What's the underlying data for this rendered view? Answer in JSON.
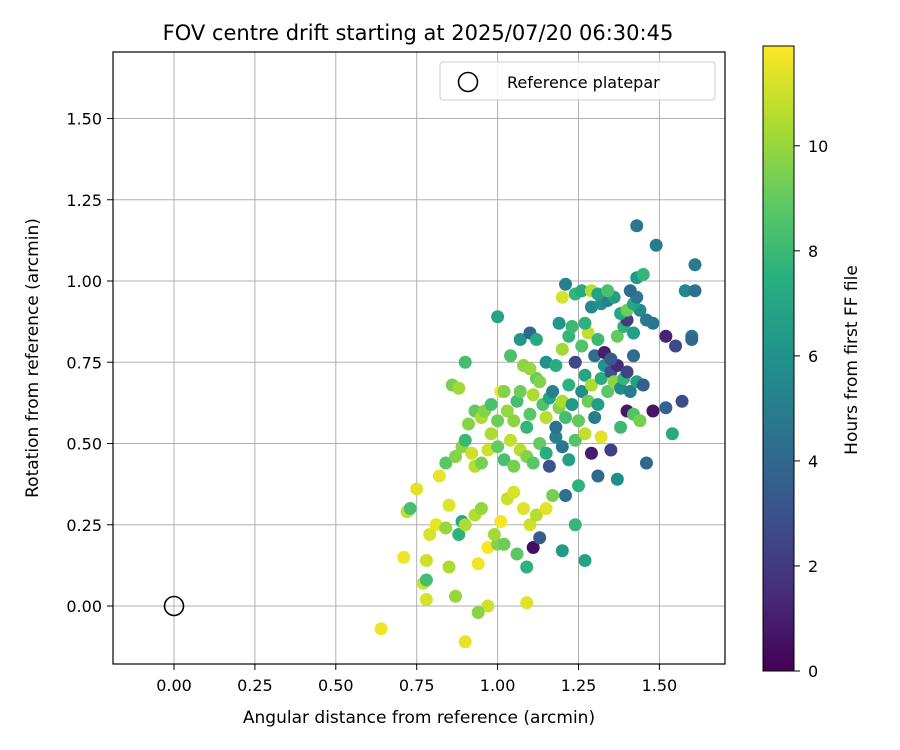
{
  "chart_data": {
    "type": "scatter",
    "title": "FOV centre drift starting at 2025/07/20 06:30:45",
    "xlabel": "Angular distance from reference (arcmin)",
    "ylabel": "Rotation from reference (arcmin)",
    "xlim": [
      -0.19,
      1.7
    ],
    "ylim": [
      -0.18,
      1.7
    ],
    "x_ticks": [
      "0.00",
      "0.25",
      "0.50",
      "0.75",
      "1.00",
      "1.25",
      "1.50"
    ],
    "y_ticks": [
      "0.00",
      "0.25",
      "0.50",
      "0.75",
      "1.00",
      "1.25",
      "1.50"
    ],
    "grid": true,
    "legend": {
      "position": "top-right",
      "entries": [
        {
          "label": "Reference platepar",
          "marker": "open-circle"
        }
      ]
    },
    "reference_point": {
      "x": 0.0,
      "y": 0.0
    },
    "colorbar": {
      "label": "Hours from first FF file",
      "range": [
        0,
        11.9
      ],
      "ticks": [
        "0",
        "2",
        "4",
        "6",
        "8",
        "10"
      ],
      "colormap": "viridis"
    },
    "points": [
      [
        0.64,
        -0.07,
        11.6
      ],
      [
        0.9,
        -0.11,
        11.5
      ],
      [
        0.97,
        0.0,
        11.0
      ],
      [
        1.09,
        0.01,
        11.3
      ],
      [
        0.94,
        -0.02,
        9.8
      ],
      [
        0.87,
        0.03,
        10.0
      ],
      [
        0.78,
        0.02,
        11.2
      ],
      [
        0.77,
        0.07,
        11.0
      ],
      [
        0.78,
        0.08,
        8.2
      ],
      [
        0.71,
        0.15,
        11.6
      ],
      [
        0.78,
        0.14,
        11.0
      ],
      [
        0.85,
        0.12,
        10.4
      ],
      [
        0.94,
        0.13,
        11.6
      ],
      [
        0.97,
        0.18,
        11.8
      ],
      [
        1.0,
        0.19,
        9.6
      ],
      [
        1.02,
        0.19,
        9.2
      ],
      [
        1.06,
        0.16,
        8.8
      ],
      [
        1.09,
        0.12,
        7.6
      ],
      [
        1.11,
        0.18,
        0.5
      ],
      [
        1.13,
        0.21,
        3.5
      ],
      [
        1.2,
        0.17,
        6.4
      ],
      [
        1.24,
        0.25,
        7.8
      ],
      [
        1.27,
        0.14,
        6.8
      ],
      [
        0.72,
        0.29,
        10.8
      ],
      [
        0.73,
        0.3,
        8.4
      ],
      [
        0.75,
        0.36,
        11.4
      ],
      [
        0.79,
        0.22,
        11.2
      ],
      [
        0.81,
        0.25,
        11.5
      ],
      [
        0.84,
        0.24,
        10.0
      ],
      [
        0.85,
        0.31,
        11.3
      ],
      [
        0.88,
        0.22,
        7.6
      ],
      [
        0.89,
        0.26,
        7.2
      ],
      [
        0.9,
        0.25,
        10.4
      ],
      [
        0.93,
        0.28,
        10.5
      ],
      [
        0.95,
        0.3,
        10.0
      ],
      [
        0.99,
        0.22,
        10.2
      ],
      [
        1.01,
        0.26,
        11.7
      ],
      [
        1.03,
        0.33,
        10.9
      ],
      [
        1.05,
        0.35,
        11.2
      ],
      [
        1.08,
        0.3,
        11.4
      ],
      [
        1.1,
        0.25,
        11.0
      ],
      [
        1.12,
        0.28,
        10.6
      ],
      [
        1.15,
        0.3,
        11.4
      ],
      [
        1.17,
        0.34,
        9.4
      ],
      [
        1.21,
        0.34,
        4.4
      ],
      [
        1.25,
        0.37,
        7.6
      ],
      [
        1.31,
        0.4,
        4.0
      ],
      [
        1.37,
        0.39,
        5.8
      ],
      [
        0.82,
        0.4,
        11.5
      ],
      [
        0.84,
        0.44,
        8.8
      ],
      [
        0.87,
        0.46,
        9.6
      ],
      [
        0.89,
        0.49,
        9.8
      ],
      [
        0.9,
        0.51,
        8.0
      ],
      [
        0.92,
        0.47,
        11.0
      ],
      [
        0.93,
        0.43,
        10.6
      ],
      [
        0.95,
        0.44,
        9.4
      ],
      [
        0.97,
        0.48,
        11.0
      ],
      [
        0.98,
        0.53,
        10.4
      ],
      [
        1.0,
        0.49,
        9.0
      ],
      [
        1.02,
        0.45,
        8.4
      ],
      [
        1.04,
        0.51,
        10.8
      ],
      [
        1.05,
        0.43,
        9.4
      ],
      [
        1.07,
        0.48,
        10.6
      ],
      [
        1.09,
        0.46,
        9.6
      ],
      [
        1.11,
        0.44,
        8.8
      ],
      [
        1.13,
        0.5,
        9.0
      ],
      [
        1.15,
        0.47,
        7.4
      ],
      [
        1.16,
        0.43,
        3.0
      ],
      [
        1.18,
        0.52,
        5.2
      ],
      [
        1.2,
        0.49,
        4.6
      ],
      [
        1.22,
        0.45,
        6.6
      ],
      [
        1.24,
        0.51,
        8.6
      ],
      [
        1.27,
        0.53,
        10.8
      ],
      [
        1.29,
        0.47,
        0.9
      ],
      [
        1.32,
        0.52,
        11.4
      ],
      [
        1.35,
        0.48,
        2.2
      ],
      [
        1.38,
        0.55,
        8.0
      ],
      [
        1.4,
        0.6,
        0.8
      ],
      [
        1.42,
        0.59,
        8.6
      ],
      [
        1.44,
        0.57,
        9.4
      ],
      [
        1.46,
        0.44,
        4.0
      ],
      [
        1.48,
        0.6,
        0.7
      ],
      [
        1.52,
        0.61,
        3.8
      ],
      [
        1.54,
        0.53,
        7.2
      ],
      [
        1.57,
        0.63,
        2.8
      ],
      [
        0.91,
        0.56,
        9.6
      ],
      [
        0.93,
        0.6,
        9.0
      ],
      [
        0.95,
        0.58,
        10.4
      ],
      [
        0.96,
        0.6,
        9.6
      ],
      [
        0.98,
        0.62,
        8.4
      ],
      [
        1.0,
        0.57,
        9.2
      ],
      [
        1.01,
        0.66,
        11.6
      ],
      [
        1.03,
        0.6,
        10.0
      ],
      [
        1.05,
        0.57,
        9.8
      ],
      [
        1.06,
        0.63,
        8.2
      ],
      [
        1.07,
        0.66,
        9.2
      ],
      [
        1.09,
        0.55,
        7.8
      ],
      [
        1.1,
        0.59,
        8.8
      ],
      [
        1.11,
        0.65,
        10.4
      ],
      [
        1.12,
        0.7,
        9.0
      ],
      [
        1.14,
        0.62,
        8.6
      ],
      [
        1.15,
        0.58,
        10.6
      ],
      [
        1.16,
        0.64,
        7.0
      ],
      [
        1.17,
        0.66,
        5.2
      ],
      [
        1.18,
        0.55,
        4.4
      ],
      [
        1.19,
        0.61,
        9.6
      ],
      [
        1.2,
        0.63,
        10.4
      ],
      [
        1.21,
        0.58,
        8.2
      ],
      [
        1.22,
        0.68,
        7.6
      ],
      [
        1.23,
        0.62,
        6.4
      ],
      [
        1.25,
        0.57,
        9.0
      ],
      [
        1.26,
        0.66,
        5.8
      ],
      [
        1.27,
        0.71,
        7.0
      ],
      [
        1.28,
        0.63,
        9.2
      ],
      [
        1.29,
        0.68,
        10.4
      ],
      [
        1.3,
        0.58,
        5.0
      ],
      [
        1.31,
        0.62,
        6.6
      ],
      [
        1.32,
        0.7,
        7.4
      ],
      [
        1.33,
        0.74,
        6.0
      ],
      [
        1.34,
        0.66,
        8.8
      ],
      [
        1.35,
        0.72,
        3.0
      ],
      [
        1.36,
        0.69,
        9.8
      ],
      [
        1.37,
        0.74,
        1.4
      ],
      [
        1.38,
        0.67,
        5.6
      ],
      [
        1.39,
        0.7,
        7.8
      ],
      [
        1.4,
        0.72,
        2.4
      ],
      [
        1.41,
        0.66,
        5.0
      ],
      [
        1.42,
        0.77,
        4.2
      ],
      [
        1.43,
        0.69,
        6.8
      ],
      [
        1.45,
        0.68,
        3.6
      ],
      [
        0.86,
        0.68,
        9.4
      ],
      [
        0.88,
        0.67,
        10.2
      ],
      [
        0.9,
        0.75,
        8.2
      ],
      [
        1.02,
        0.66,
        9.6
      ],
      [
        1.04,
        0.77,
        8.4
      ],
      [
        1.08,
        0.74,
        9.8
      ],
      [
        1.1,
        0.73,
        10.0
      ],
      [
        1.13,
        0.69,
        9.6
      ],
      [
        1.15,
        0.75,
        6.0
      ],
      [
        1.18,
        0.74,
        7.4
      ],
      [
        1.2,
        0.79,
        10.2
      ],
      [
        1.22,
        0.83,
        7.8
      ],
      [
        1.24,
        0.75,
        2.6
      ],
      [
        1.26,
        0.8,
        8.6
      ],
      [
        1.28,
        0.84,
        10.8
      ],
      [
        1.3,
        0.77,
        4.4
      ],
      [
        1.31,
        0.82,
        8.0
      ],
      [
        1.33,
        0.78,
        0.9
      ],
      [
        1.35,
        0.76,
        3.4
      ],
      [
        1.37,
        0.83,
        9.0
      ],
      [
        1.39,
        0.86,
        7.6
      ],
      [
        1.4,
        0.88,
        2.0
      ],
      [
        1.42,
        0.84,
        6.6
      ],
      [
        1.44,
        0.91,
        5.6
      ],
      [
        1.46,
        0.88,
        4.8
      ],
      [
        1.48,
        0.87,
        4.6
      ],
      [
        1.52,
        0.83,
        1.2
      ],
      [
        1.55,
        0.8,
        2.6
      ],
      [
        1.6,
        0.83,
        4.6
      ],
      [
        1.6,
        0.82,
        4.0
      ],
      [
        1.07,
        0.82,
        6.2
      ],
      [
        1.1,
        0.84,
        4.0
      ],
      [
        1.12,
        0.82,
        7.2
      ],
      [
        1.0,
        0.89,
        7.0
      ],
      [
        1.19,
        0.87,
        6.2
      ],
      [
        1.23,
        0.86,
        8.0
      ],
      [
        1.27,
        0.87,
        7.6
      ],
      [
        1.29,
        0.92,
        5.4
      ],
      [
        1.32,
        0.93,
        6.0
      ],
      [
        1.34,
        0.94,
        5.2
      ],
      [
        1.36,
        0.95,
        6.6
      ],
      [
        1.38,
        0.9,
        7.0
      ],
      [
        1.4,
        0.91,
        9.2
      ],
      [
        1.42,
        0.93,
        7.0
      ],
      [
        1.43,
        0.95,
        4.8
      ],
      [
        1.21,
        0.99,
        5.2
      ],
      [
        1.24,
        0.96,
        7.8
      ],
      [
        1.26,
        0.97,
        7.2
      ],
      [
        1.29,
        0.97,
        10.6
      ],
      [
        1.31,
        0.96,
        6.8
      ],
      [
        1.34,
        0.97,
        8.4
      ],
      [
        1.2,
        0.95,
        11.2
      ],
      [
        1.41,
        0.97,
        4.2
      ],
      [
        1.43,
        1.01,
        6.4
      ],
      [
        1.45,
        1.02,
        7.8
      ],
      [
        1.43,
        1.17,
        4.6
      ],
      [
        1.49,
        1.11,
        5.0
      ],
      [
        1.58,
        0.97,
        5.4
      ],
      [
        1.61,
        0.97,
        4.4
      ],
      [
        1.61,
        1.05,
        4.8
      ]
    ]
  }
}
